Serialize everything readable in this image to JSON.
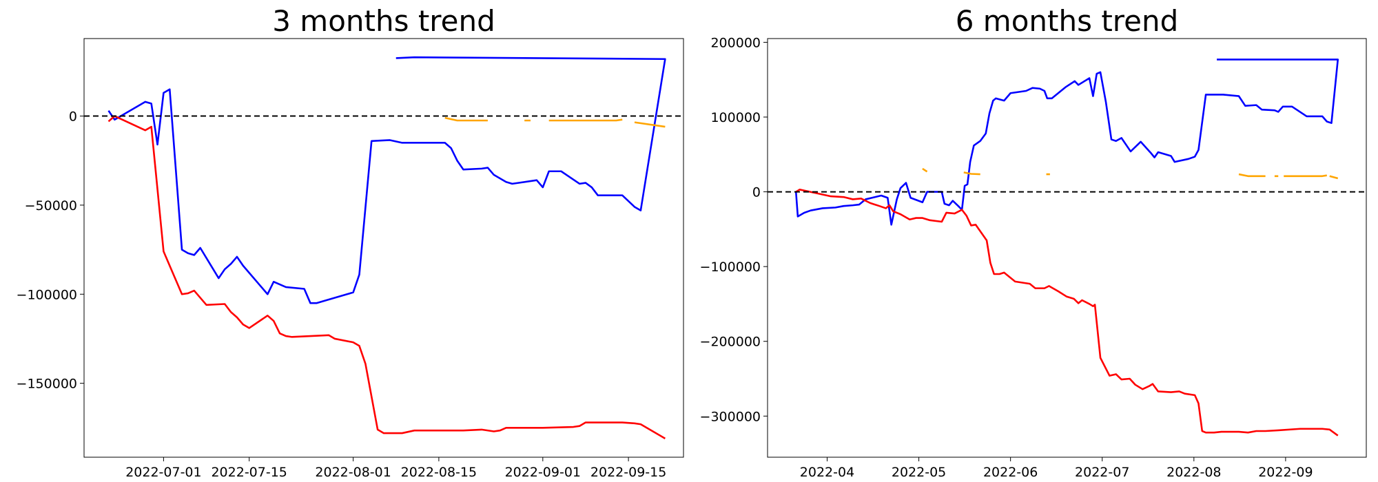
{
  "chart_data": [
    {
      "type": "line",
      "title": "3 months trend",
      "xlim": [
        "2022-06-18",
        "2022-09-24"
      ],
      "xticks": [
        "2022-07-01",
        "2022-07-15",
        "2022-08-01",
        "2022-08-15",
        "2022-09-01",
        "2022-09-15"
      ],
      "ylim": [
        -191500,
        43500
      ],
      "yticks": [
        {
          "value": -150000,
          "label": "−150000"
        },
        {
          "value": -100000,
          "label": "−100000"
        },
        {
          "value": -50000,
          "label": "−50000"
        },
        0
      ],
      "reference_line": 0,
      "series": [
        {
          "color": "#0000ff",
          "x": [
            "2022-06-22",
            "2022-06-23",
            "2022-06-28",
            "2022-06-29",
            "2022-06-30",
            "2022-07-01",
            "2022-07-02",
            "2022-07-04",
            "2022-07-05",
            "2022-07-06",
            "2022-07-07",
            "2022-07-10",
            "2022-07-11",
            "2022-07-12",
            "2022-07-13",
            "2022-07-14",
            "2022-07-17",
            "2022-07-18",
            "2022-07-19",
            "2022-07-21",
            "2022-07-24",
            "2022-07-25",
            "2022-07-26",
            "2022-07-27",
            "2022-07-31",
            "2022-08-01",
            "2022-08-02",
            "2022-08-04",
            "2022-08-07",
            "2022-08-09",
            "2022-08-16",
            "2022-08-17",
            "2022-08-18",
            "2022-08-19",
            "2022-08-22",
            "2022-08-23",
            "2022-08-24",
            "2022-08-26",
            "2022-08-27",
            "2022-08-31",
            "2022-09-01",
            "2022-09-02",
            "2022-09-04",
            "2022-09-07",
            "2022-09-08",
            "2022-09-09",
            "2022-09-10",
            "2022-09-14",
            "2022-09-16",
            "2022-09-17",
            "2022-09-21",
            "2022-08-11",
            "2022-08-08"
          ],
          "values": [
            3000,
            -2000,
            8000,
            7000,
            -16000,
            13000,
            15000,
            -75000,
            -77000,
            -78000,
            -74000,
            -91000,
            -86000,
            -83000,
            -79000,
            -84000,
            -96000,
            -100000,
            -93000,
            -96000,
            -97000,
            -105000,
            -105000,
            -104000,
            -100000,
            -99000,
            -89000,
            -14000,
            -13500,
            -15000,
            -15000,
            -18000,
            -25000,
            -30000,
            -29500,
            -29000,
            -33000,
            -37000,
            -38000,
            -36000,
            -40000,
            -31000,
            -31000,
            -38000,
            -37500,
            -40000,
            -44500,
            -44500,
            -51000,
            -53000,
            32000,
            33000,
            32500
          ]
        },
        {
          "color": "#ff0000",
          "x": [
            "2022-06-22",
            "2022-06-23",
            "2022-06-28",
            "2022-06-29",
            "2022-07-01",
            "2022-07-04",
            "2022-07-05",
            "2022-07-06",
            "2022-07-08",
            "2022-07-11",
            "2022-07-12",
            "2022-07-13",
            "2022-07-14",
            "2022-07-15",
            "2022-07-18",
            "2022-07-19",
            "2022-07-20",
            "2022-07-21",
            "2022-07-22",
            "2022-07-28",
            "2022-07-29",
            "2022-08-01",
            "2022-08-02",
            "2022-08-03",
            "2022-08-05",
            "2022-08-06",
            "2022-08-09",
            "2022-08-11",
            "2022-08-19",
            "2022-08-22",
            "2022-08-24",
            "2022-08-25",
            "2022-08-26",
            "2022-09-01",
            "2022-09-06",
            "2022-09-07",
            "2022-09-08",
            "2022-09-14",
            "2022-09-16",
            "2022-09-17",
            "2022-09-21"
          ],
          "values": [
            -3000,
            0,
            -8000,
            -6000,
            -76000,
            -100000,
            -99500,
            -98000,
            -106000,
            -105500,
            -110000,
            -113000,
            -117000,
            -119000,
            -112000,
            -115000,
            -122000,
            -123500,
            -124000,
            -123000,
            -125000,
            -127000,
            -129000,
            -139000,
            -176000,
            -178000,
            -178000,
            -176500,
            -176500,
            -176000,
            -177000,
            -176500,
            -175000,
            -175000,
            -174500,
            -174000,
            -172000,
            -172000,
            -172500,
            -173000,
            -181000
          ]
        },
        {
          "color": "#ffa500",
          "x": [
            "2022-08-16",
            "2022-08-18",
            "2022-08-19",
            "2022-08-23",
            "2022-08-26",
            "2022-08-29",
            "2022-08-30",
            "2022-08-31",
            "2022-09-02",
            "2022-09-13",
            "2022-09-14",
            "2022-09-15",
            "2022-09-16",
            "2022-09-21"
          ],
          "values": [
            -1000,
            -2500,
            -2500,
            -2500,
            null,
            -2500,
            -2500,
            null,
            -2500,
            -2500,
            -2000,
            null,
            -3500,
            -6000
          ]
        }
      ]
    },
    {
      "type": "line",
      "title": "6 months trend",
      "xlim": [
        3.35,
        9.88
      ],
      "xticks": [
        {
          "value": 4,
          "label": "2022-04"
        },
        {
          "value": 5,
          "label": "2022-05"
        },
        {
          "value": 6,
          "label": "2022-06"
        },
        {
          "value": 7,
          "label": "2022-07"
        },
        {
          "value": 8,
          "label": "2022-08"
        },
        {
          "value": 9,
          "label": "2022-09"
        }
      ],
      "ylim": [
        -355000,
        205000
      ],
      "yticks": [
        {
          "value": -300000,
          "label": "−300000"
        },
        {
          "value": -200000,
          "label": "−200000"
        },
        {
          "value": -100000,
          "label": "−100000"
        },
        0,
        100000,
        200000
      ],
      "reference_line": 0,
      "series": [
        {
          "color": "#0000ff",
          "x": [
            3.66,
            3.68,
            3.75,
            3.82,
            3.95,
            4.09,
            4.18,
            4.28,
            4.35,
            4.42,
            4.59,
            4.66,
            4.7,
            4.76,
            4.8,
            4.86,
            4.91,
            5.04,
            5.09,
            5.25,
            5.28,
            5.33,
            5.37,
            5.43,
            5.47,
            5.5,
            5.53,
            5.56,
            5.6,
            5.67,
            5.73,
            5.77,
            5.81,
            5.84,
            5.93,
            6.0,
            6.17,
            6.24,
            6.32,
            6.37,
            6.4,
            6.45,
            6.6,
            6.7,
            6.74,
            6.86,
            6.9,
            6.94,
            6.98,
            7.04,
            7.1,
            7.15,
            7.21,
            7.31,
            7.42,
            7.53,
            7.57,
            7.61,
            7.75,
            7.79,
            7.94,
            8.01,
            8.05,
            8.13,
            8.32,
            8.49,
            8.56,
            8.68,
            8.74,
            8.88,
            8.92,
            8.97,
            9.07,
            9.23,
            9.4,
            9.45,
            9.5,
            9.57,
            8.25
          ],
          "values": [
            0,
            -33000,
            -28000,
            -25000,
            -22000,
            -21000,
            -19000,
            -18000,
            -17000,
            -10000,
            -5000,
            -8000,
            -44000,
            -10000,
            5000,
            12000,
            -8000,
            -14000,
            0,
            0,
            -16000,
            -18000,
            -12000,
            -19000,
            -24000,
            8000,
            10000,
            40000,
            62000,
            68000,
            78000,
            105000,
            122000,
            125000,
            122000,
            132000,
            135000,
            139000,
            138000,
            135000,
            125000,
            125000,
            140000,
            148000,
            143000,
            152000,
            128000,
            158000,
            160000,
            120000,
            70000,
            68000,
            72000,
            54000,
            67000,
            52000,
            46000,
            53000,
            48000,
            40000,
            44000,
            47000,
            56000,
            130000,
            130000,
            128000,
            115000,
            116000,
            110000,
            109000,
            107000,
            114000,
            114000,
            101000,
            101000,
            94000,
            92000,
            177000,
            177000
          ]
        },
        {
          "color": "#ff0000",
          "x": [
            3.66,
            3.7,
            3.89,
            4.04,
            4.18,
            4.28,
            4.37,
            4.47,
            4.57,
            4.64,
            4.68,
            4.72,
            4.8,
            4.9,
            4.97,
            5.04,
            5.12,
            5.25,
            5.3,
            5.39,
            5.47,
            5.52,
            5.57,
            5.62,
            5.74,
            5.78,
            5.82,
            5.88,
            5.93,
            6.05,
            6.21,
            6.27,
            6.37,
            6.42,
            6.52,
            6.61,
            6.69,
            6.74,
            6.78,
            6.86,
            6.9,
            6.92,
            6.98,
            7.08,
            7.15,
            7.21,
            7.3,
            7.36,
            7.44,
            7.51,
            7.55,
            7.61,
            7.75,
            7.84,
            7.9,
            8.01,
            8.05,
            8.09,
            8.13,
            8.22,
            8.3,
            8.49,
            8.59,
            8.68,
            8.78,
            8.92,
            9.16,
            9.4,
            9.48,
            9.57
          ],
          "values": [
            0,
            3000,
            -2000,
            -6000,
            -7000,
            -10000,
            -9000,
            -15000,
            -19000,
            -22000,
            -18000,
            -26000,
            -30000,
            -37000,
            -35000,
            -35000,
            -38000,
            -40000,
            -28000,
            -29000,
            -24000,
            -32000,
            -45000,
            -44000,
            -65000,
            -95000,
            -110000,
            -110000,
            -108000,
            -120000,
            -123000,
            -129000,
            -129000,
            -126000,
            -133000,
            -140000,
            -143000,
            -149000,
            -145000,
            -150000,
            -153000,
            -151000,
            -222000,
            -246000,
            -244000,
            -251000,
            -250000,
            -258000,
            -264000,
            -260000,
            -257000,
            -267000,
            -268000,
            -267000,
            -270000,
            -272000,
            -283000,
            -320000,
            -322000,
            -322000,
            -321000,
            -321000,
            -322000,
            -320000,
            -320000,
            -319000,
            -317000,
            -317000,
            -318000,
            -326000
          ]
        },
        {
          "color": "#ffa500",
          "x": [
            5.04,
            5.09,
            5.3,
            5.49,
            5.57,
            5.67,
            6.0,
            6.39,
            6.43,
            7.5,
            8.49,
            8.59,
            8.78,
            8.83,
            8.88,
            8.92,
            8.95,
            8.98,
            9.4,
            9.45,
            9.47,
            9.48,
            9.57
          ],
          "values": [
            31000,
            27000,
            null,
            26000,
            24000,
            23500,
            null,
            23500,
            23500,
            null,
            23500,
            21000,
            21000,
            null,
            21000,
            21000,
            null,
            21000,
            21000,
            22000,
            null,
            21000,
            18000
          ]
        }
      ]
    }
  ]
}
